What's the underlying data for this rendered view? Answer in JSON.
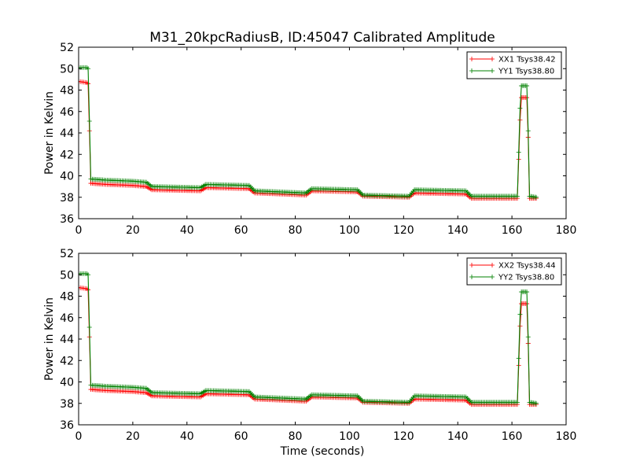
{
  "title": "M31_20kpcRadiusB, ID:45047 Calibrated Amplitude",
  "colors": {
    "xx": "#ff0000",
    "yy": "#008000"
  },
  "chart_data": [
    {
      "type": "line",
      "title": "M31_20kpcRadiusB, ID:45047 Calibrated Amplitude",
      "xlabel": "",
      "ylabel": "Power in Kelvin",
      "xlim": [
        0,
        180
      ],
      "ylim": [
        36,
        52
      ],
      "xticks": [
        0,
        20,
        40,
        60,
        80,
        100,
        120,
        140,
        160,
        180
      ],
      "yticks": [
        36,
        38,
        40,
        42,
        44,
        46,
        48,
        50,
        52
      ],
      "grid": false,
      "legend": "top-right",
      "series": [
        {
          "name": "XX1 Tsys38.42",
          "color": "#ff0000",
          "points": [
            [
              0,
              48.8
            ],
            [
              3,
              48.7
            ],
            [
              3.5,
              48.6
            ],
            [
              4,
              44.2
            ],
            [
              4.5,
              39.3
            ],
            [
              10,
              39.2
            ],
            [
              20,
              39.1
            ],
            [
              25,
              39.0
            ],
            [
              27,
              38.7
            ],
            [
              45,
              38.6
            ],
            [
              47,
              38.9
            ],
            [
              63,
              38.8
            ],
            [
              65,
              38.4
            ],
            [
              84,
              38.2
            ],
            [
              86,
              38.6
            ],
            [
              103,
              38.5
            ],
            [
              105,
              38.1
            ],
            [
              122,
              38.0
            ],
            [
              124,
              38.4
            ],
            [
              143,
              38.3
            ],
            [
              145,
              37.9
            ],
            [
              162,
              37.9
            ],
            [
              163,
              45.2
            ],
            [
              163.5,
              47.3
            ],
            [
              165.5,
              47.3
            ],
            [
              166,
              43.6
            ],
            [
              166.5,
              37.9
            ],
            [
              169,
              37.9
            ]
          ]
        },
        {
          "name": "YY1 Tsys38.80",
          "color": "#008000",
          "points": [
            [
              0,
              50.1
            ],
            [
              3,
              50.1
            ],
            [
              3.5,
              50.0
            ],
            [
              4,
              45.1
            ],
            [
              4.5,
              39.7
            ],
            [
              10,
              39.6
            ],
            [
              20,
              39.5
            ],
            [
              25,
              39.4
            ],
            [
              27,
              39.0
            ],
            [
              45,
              38.9
            ],
            [
              47,
              39.2
            ],
            [
              63,
              39.1
            ],
            [
              65,
              38.6
            ],
            [
              84,
              38.4
            ],
            [
              86,
              38.8
            ],
            [
              103,
              38.7
            ],
            [
              105,
              38.2
            ],
            [
              122,
              38.1
            ],
            [
              124,
              38.7
            ],
            [
              143,
              38.6
            ],
            [
              145,
              38.1
            ],
            [
              162,
              38.1
            ],
            [
              163,
              46.3
            ],
            [
              163.5,
              48.4
            ],
            [
              165.5,
              48.4
            ],
            [
              166,
              44.2
            ],
            [
              166.5,
              38.1
            ],
            [
              169,
              38.0
            ]
          ]
        }
      ]
    },
    {
      "type": "line",
      "title": "",
      "xlabel": "Time (seconds)",
      "ylabel": "Power in Kelvin",
      "xlim": [
        0,
        180
      ],
      "ylim": [
        36,
        52
      ],
      "xticks": [
        0,
        20,
        40,
        60,
        80,
        100,
        120,
        140,
        160,
        180
      ],
      "yticks": [
        36,
        38,
        40,
        42,
        44,
        46,
        48,
        50,
        52
      ],
      "grid": false,
      "legend": "top-right",
      "series": [
        {
          "name": "XX2 Tsys38.44",
          "color": "#ff0000",
          "points": [
            [
              0,
              48.8
            ],
            [
              3,
              48.7
            ],
            [
              3.5,
              48.6
            ],
            [
              4,
              44.2
            ],
            [
              4.5,
              39.3
            ],
            [
              10,
              39.2
            ],
            [
              20,
              39.1
            ],
            [
              25,
              39.0
            ],
            [
              27,
              38.7
            ],
            [
              45,
              38.6
            ],
            [
              47,
              38.9
            ],
            [
              63,
              38.8
            ],
            [
              65,
              38.4
            ],
            [
              84,
              38.2
            ],
            [
              86,
              38.6
            ],
            [
              103,
              38.5
            ],
            [
              105,
              38.1
            ],
            [
              122,
              38.0
            ],
            [
              124,
              38.4
            ],
            [
              143,
              38.3
            ],
            [
              145,
              37.9
            ],
            [
              162,
              37.9
            ],
            [
              163,
              45.2
            ],
            [
              163.5,
              47.3
            ],
            [
              165.5,
              47.3
            ],
            [
              166,
              43.6
            ],
            [
              166.5,
              37.9
            ],
            [
              169,
              37.9
            ]
          ]
        },
        {
          "name": "YY2 Tsys38.80",
          "color": "#008000",
          "points": [
            [
              0,
              50.1
            ],
            [
              3,
              50.1
            ],
            [
              3.5,
              50.0
            ],
            [
              4,
              45.1
            ],
            [
              4.5,
              39.7
            ],
            [
              10,
              39.6
            ],
            [
              20,
              39.5
            ],
            [
              25,
              39.4
            ],
            [
              27,
              39.0
            ],
            [
              45,
              38.9
            ],
            [
              47,
              39.2
            ],
            [
              63,
              39.1
            ],
            [
              65,
              38.6
            ],
            [
              84,
              38.4
            ],
            [
              86,
              38.8
            ],
            [
              103,
              38.7
            ],
            [
              105,
              38.2
            ],
            [
              122,
              38.1
            ],
            [
              124,
              38.7
            ],
            [
              143,
              38.6
            ],
            [
              145,
              38.1
            ],
            [
              162,
              38.1
            ],
            [
              163,
              46.3
            ],
            [
              163.5,
              48.4
            ],
            [
              165.5,
              48.4
            ],
            [
              166,
              44.2
            ],
            [
              166.5,
              38.1
            ],
            [
              169,
              38.0
            ]
          ]
        }
      ]
    }
  ]
}
